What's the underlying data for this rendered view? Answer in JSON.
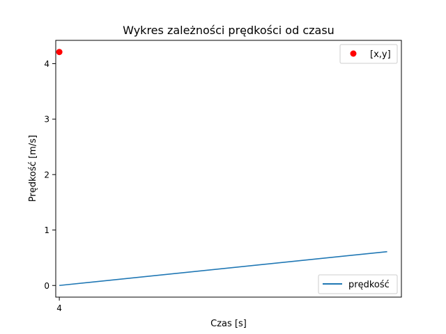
{
  "chart_data": {
    "type": "line",
    "title": "Wykres zależności prędkości od czasu",
    "xlabel": "Czas [s]",
    "ylabel": "Prędkość [m/s]",
    "xlim": [
      3.95,
      8.8
    ],
    "ylim": [
      -0.21,
      4.42
    ],
    "xticks": [
      4
    ],
    "yticks": [
      0,
      1,
      2,
      3,
      4
    ],
    "grid": false,
    "series": [
      {
        "name": "prędkość",
        "kind": "line",
        "color": "#1f77b4",
        "points": [
          [
            4,
            0
          ],
          [
            8.6,
            0.61
          ]
        ],
        "legend": "lower-right"
      },
      {
        "name": "[x,y]",
        "kind": "scatter",
        "color": "#ff0000",
        "points": [
          [
            4,
            4.21
          ]
        ],
        "legend": "upper-right"
      }
    ]
  }
}
